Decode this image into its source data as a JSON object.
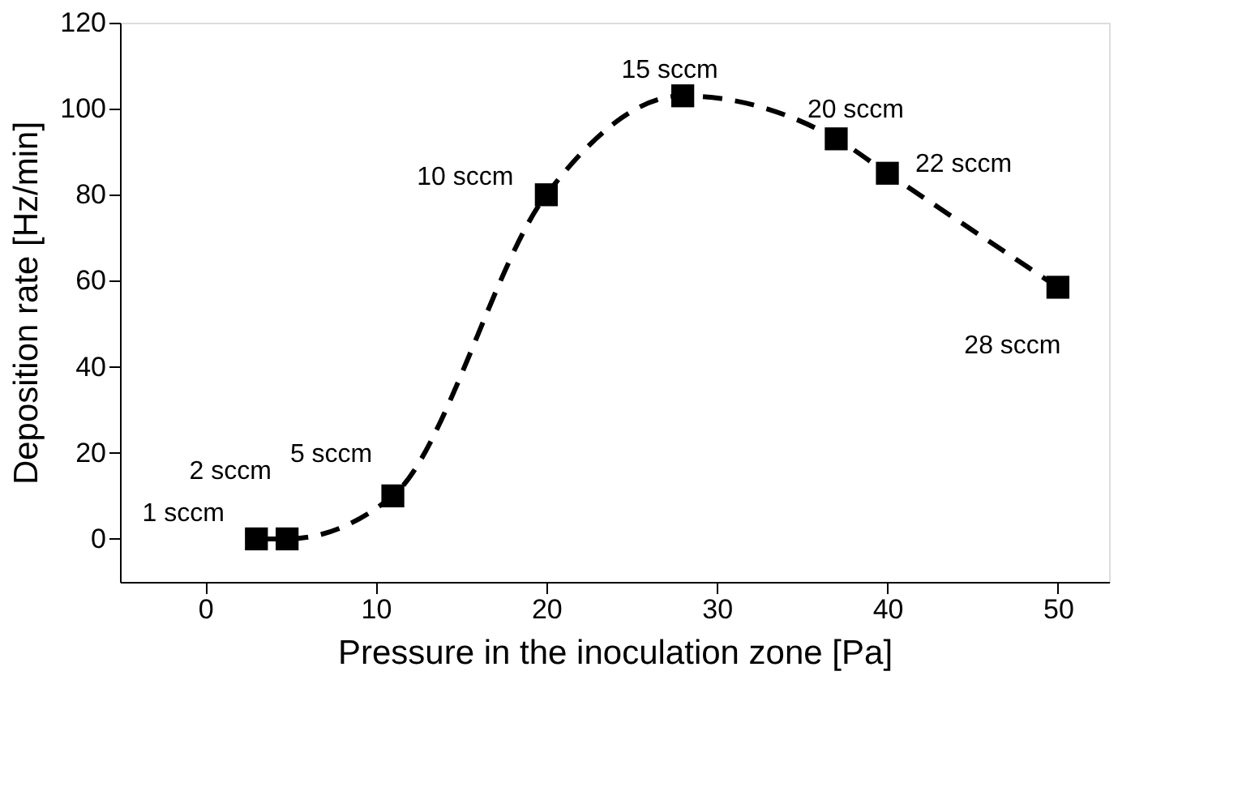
{
  "chart_data": {
    "type": "line",
    "xlabel": "Pressure in the inoculation zone [Pa]",
    "ylabel": "Deposition rate [Hz/min]",
    "x": [
      3,
      4.8,
      11,
      20,
      28,
      37,
      40,
      50
    ],
    "series": [
      {
        "color": "#000000",
        "values": [
          0,
          0,
          10,
          80,
          103,
          93,
          85,
          58.5
        ]
      }
    ],
    "marker": "square",
    "line_style": "dashed",
    "grid": false,
    "xlim": [
      -5,
      53
    ],
    "xticks": [
      0,
      10,
      20,
      30,
      40,
      50
    ],
    "ylim": [
      -10,
      120
    ],
    "yticks": [
      0,
      20,
      40,
      60,
      80,
      100,
      120
    ],
    "annotations": [
      {
        "text": "1 sccm",
        "x": 3,
        "y": 0
      },
      {
        "text": "2 sccm",
        "x": 4.8,
        "y": 0
      },
      {
        "text": "5 sccm",
        "x": 11,
        "y": 10
      },
      {
        "text": "10 sccm",
        "x": 20,
        "y": 80
      },
      {
        "text": "15 sccm",
        "x": 28,
        "y": 103
      },
      {
        "text": "20 sccm",
        "x": 37,
        "y": 93
      },
      {
        "text": "22 sccm",
        "x": 40,
        "y": 85
      },
      {
        "text": "28 sccm",
        "x": 50,
        "y": 58.5
      }
    ]
  }
}
